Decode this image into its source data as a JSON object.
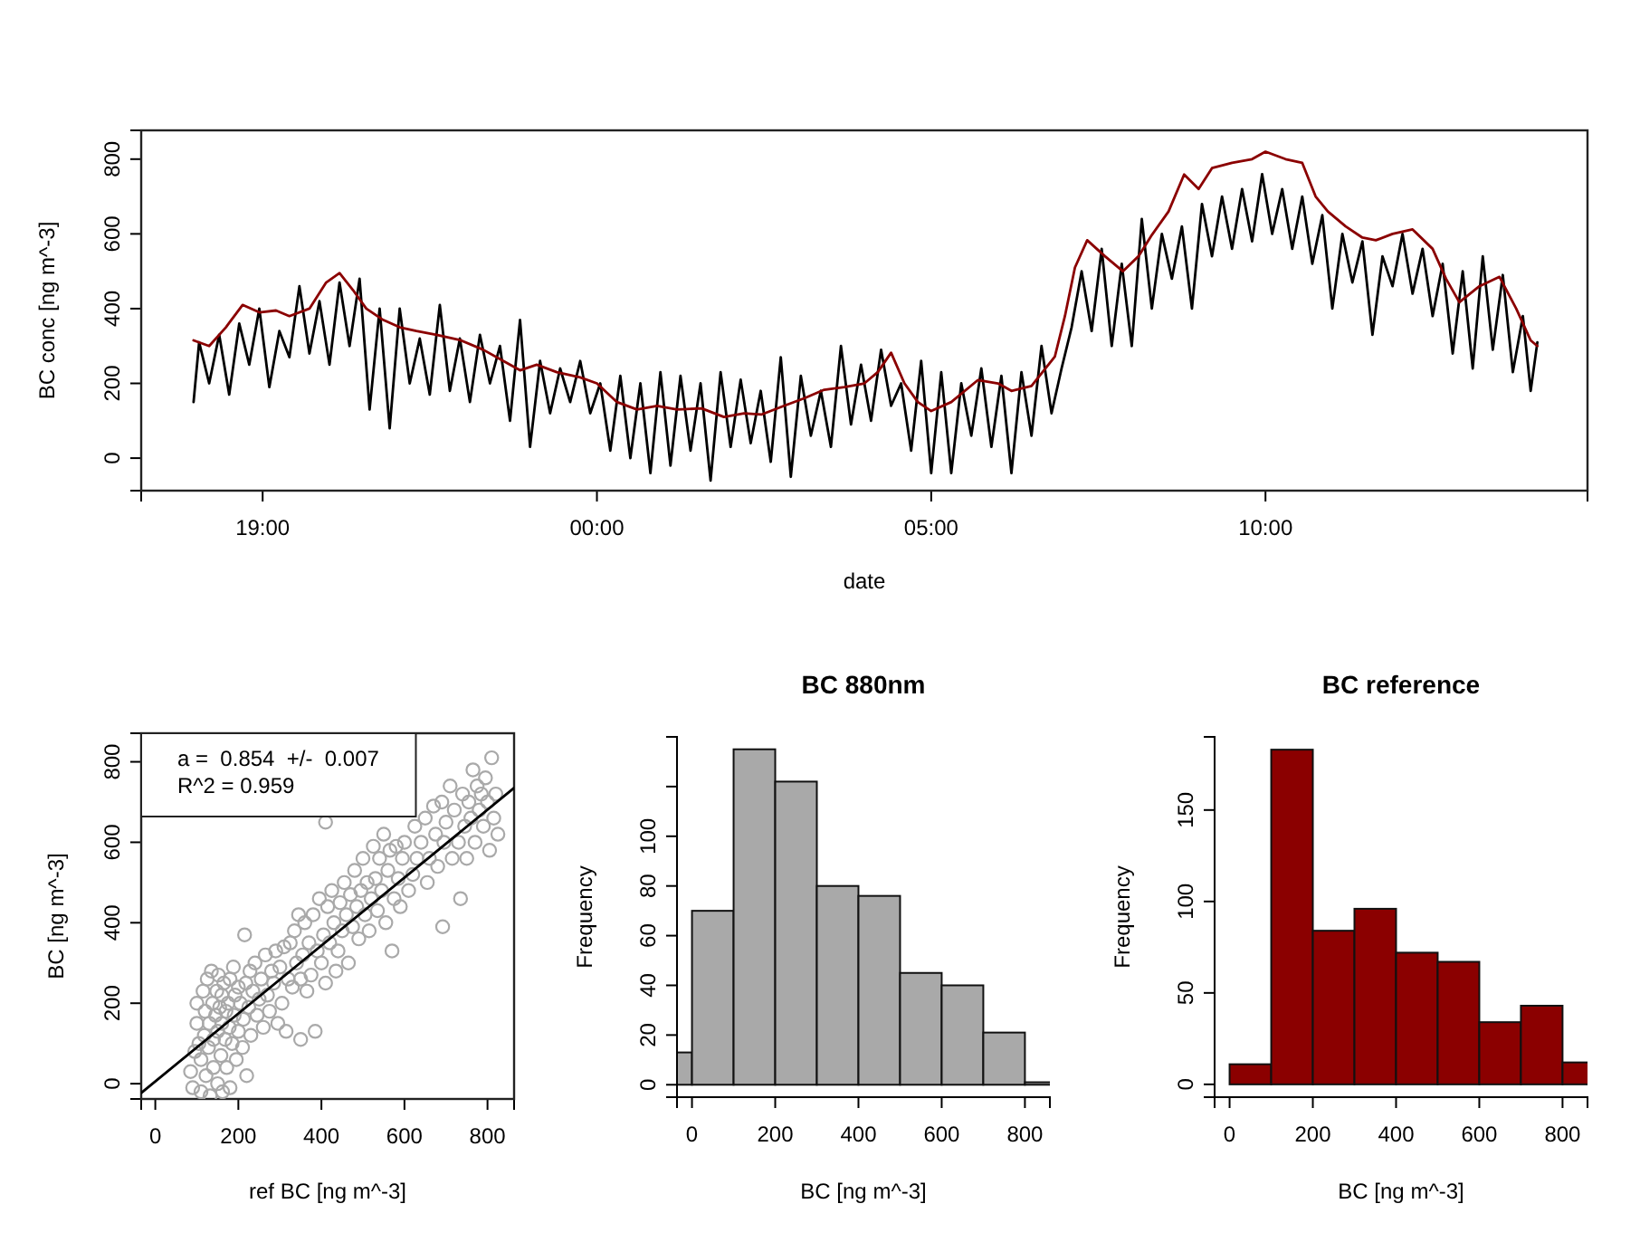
{
  "chart_data": [
    {
      "type": "line",
      "xlabel": "date",
      "ylabel": "BC conc [ng m^-3]",
      "xlim": [
        "2000-01-01T17:11",
        "2000-01-02T14:49"
      ],
      "ylim": [
        -87,
        877
      ],
      "xticks": [
        {
          "value": "2000-01-01T19:00",
          "label": "19:00"
        },
        {
          "value": "2000-01-02T00:00",
          "label": "00:00"
        },
        {
          "value": "2000-01-02T05:00",
          "label": "05:00"
        },
        {
          "value": "2000-01-02T10:00",
          "label": "10:00"
        }
      ],
      "yticks": [
        0,
        200,
        400,
        600,
        800
      ],
      "series": [
        {
          "color": "#000000",
          "x": [
            "2000-01-01T17:58",
            "2000-01-01T18:03",
            "2000-01-01T18:12",
            "2000-01-01T18:21",
            "2000-01-01T18:30",
            "2000-01-01T18:39",
            "2000-01-01T18:48",
            "2000-01-01T18:57",
            "2000-01-01T19:06",
            "2000-01-01T19:15",
            "2000-01-01T19:24",
            "2000-01-01T19:33",
            "2000-01-01T19:42",
            "2000-01-01T19:51",
            "2000-01-01T20:00",
            "2000-01-01T20:09",
            "2000-01-01T20:18",
            "2000-01-01T20:27",
            "2000-01-01T20:36",
            "2000-01-01T20:45",
            "2000-01-01T20:54",
            "2000-01-01T21:03",
            "2000-01-01T21:12",
            "2000-01-01T21:21",
            "2000-01-01T21:30",
            "2000-01-01T21:39",
            "2000-01-01T21:48",
            "2000-01-01T21:57",
            "2000-01-01T22:06",
            "2000-01-01T22:15",
            "2000-01-01T22:24",
            "2000-01-01T22:33",
            "2000-01-01T22:42",
            "2000-01-01T22:51",
            "2000-01-01T23:00",
            "2000-01-01T23:09",
            "2000-01-01T23:18",
            "2000-01-01T23:27",
            "2000-01-01T23:36",
            "2000-01-01T23:45",
            "2000-01-01T23:54",
            "2000-01-02T00:03",
            "2000-01-02T00:12",
            "2000-01-02T00:21",
            "2000-01-02T00:30",
            "2000-01-02T00:39",
            "2000-01-02T00:48",
            "2000-01-02T00:57",
            "2000-01-02T01:06",
            "2000-01-02T01:15",
            "2000-01-02T01:24",
            "2000-01-02T01:33",
            "2000-01-02T01:42",
            "2000-01-02T01:51",
            "2000-01-02T02:00",
            "2000-01-02T02:09",
            "2000-01-02T02:18",
            "2000-01-02T02:27",
            "2000-01-02T02:36",
            "2000-01-02T02:45",
            "2000-01-02T02:54",
            "2000-01-02T03:03",
            "2000-01-02T03:12",
            "2000-01-02T03:21",
            "2000-01-02T03:30",
            "2000-01-02T03:39",
            "2000-01-02T03:48",
            "2000-01-02T03:57",
            "2000-01-02T04:06",
            "2000-01-02T04:15",
            "2000-01-02T04:24",
            "2000-01-02T04:33",
            "2000-01-02T04:42",
            "2000-01-02T04:51",
            "2000-01-02T05:00",
            "2000-01-02T05:09",
            "2000-01-02T05:18",
            "2000-01-02T05:27",
            "2000-01-02T05:36",
            "2000-01-02T05:45",
            "2000-01-02T05:54",
            "2000-01-02T06:03",
            "2000-01-02T06:12",
            "2000-01-02T06:21",
            "2000-01-02T06:30",
            "2000-01-02T06:39",
            "2000-01-02T06:48",
            "2000-01-02T06:57",
            "2000-01-02T07:06",
            "2000-01-02T07:15",
            "2000-01-02T07:24",
            "2000-01-02T07:33",
            "2000-01-02T07:42",
            "2000-01-02T07:51",
            "2000-01-02T08:00",
            "2000-01-02T08:09",
            "2000-01-02T08:18",
            "2000-01-02T08:27",
            "2000-01-02T08:36",
            "2000-01-02T08:45",
            "2000-01-02T08:54",
            "2000-01-02T09:03",
            "2000-01-02T09:12",
            "2000-01-02T09:21",
            "2000-01-02T09:30",
            "2000-01-02T09:39",
            "2000-01-02T09:48",
            "2000-01-02T09:57",
            "2000-01-02T10:06",
            "2000-01-02T10:15",
            "2000-01-02T10:24",
            "2000-01-02T10:33",
            "2000-01-02T10:42",
            "2000-01-02T10:51",
            "2000-01-02T11:00",
            "2000-01-02T11:09",
            "2000-01-02T11:18",
            "2000-01-02T11:27",
            "2000-01-02T11:36",
            "2000-01-02T11:45",
            "2000-01-02T11:54",
            "2000-01-02T12:03",
            "2000-01-02T12:12",
            "2000-01-02T12:21",
            "2000-01-02T12:30",
            "2000-01-02T12:39",
            "2000-01-02T12:48",
            "2000-01-02T12:57",
            "2000-01-02T13:06",
            "2000-01-02T13:15",
            "2000-01-02T13:24",
            "2000-01-02T13:33",
            "2000-01-02T13:42",
            "2000-01-02T13:51",
            "2000-01-02T13:58",
            "2000-01-02T14:04"
          ],
          "values": [
            150,
            310,
            200,
            330,
            170,
            360,
            250,
            400,
            190,
            340,
            270,
            460,
            280,
            420,
            250,
            470,
            300,
            480,
            130,
            400,
            80,
            400,
            200,
            320,
            170,
            410,
            180,
            320,
            150,
            330,
            200,
            300,
            100,
            370,
            30,
            260,
            120,
            240,
            150,
            260,
            120,
            200,
            20,
            220,
            0,
            200,
            -40,
            230,
            -20,
            220,
            20,
            200,
            -60,
            230,
            30,
            210,
            40,
            180,
            -10,
            270,
            -50,
            220,
            60,
            180,
            30,
            300,
            90,
            250,
            100,
            290,
            140,
            200,
            20,
            260,
            -40,
            230,
            -40,
            200,
            60,
            240,
            30,
            220,
            -40,
            230,
            60,
            300,
            120,
            240,
            350,
            500,
            340,
            560,
            300,
            520,
            300,
            640,
            400,
            600,
            480,
            620,
            400,
            680,
            540,
            700,
            560,
            720,
            580,
            760,
            600,
            720,
            560,
            700,
            520,
            650,
            400,
            600,
            470,
            580,
            330,
            540,
            460,
            600,
            440,
            560,
            380,
            520,
            280,
            500,
            240,
            540,
            290,
            490,
            230,
            380,
            180,
            310
          ]
        },
        {
          "color": "#8b0000",
          "x": [
            "2000-01-01T17:58",
            "2000-01-01T18:12",
            "2000-01-01T18:27",
            "2000-01-01T18:42",
            "2000-01-01T18:57",
            "2000-01-01T19:12",
            "2000-01-01T19:24",
            "2000-01-01T19:42",
            "2000-01-01T19:57",
            "2000-01-01T20:09",
            "2000-01-01T20:21",
            "2000-01-01T20:33",
            "2000-01-01T20:48",
            "2000-01-01T21:03",
            "2000-01-01T21:18",
            "2000-01-01T21:36",
            "2000-01-01T21:57",
            "2000-01-01T22:18",
            "2000-01-01T22:36",
            "2000-01-01T22:51",
            "2000-01-01T23:06",
            "2000-01-01T23:24",
            "2000-01-01T23:45",
            "2000-01-02T00:00",
            "2000-01-02T00:18",
            "2000-01-02T00:36",
            "2000-01-02T00:54",
            "2000-01-02T01:12",
            "2000-01-02T01:34",
            "2000-01-02T01:54",
            "2000-01-02T02:12",
            "2000-01-02T02:28",
            "2000-01-02T02:48",
            "2000-01-02T03:06",
            "2000-01-02T03:24",
            "2000-01-02T03:42",
            "2000-01-02T04:00",
            "2000-01-02T04:12",
            "2000-01-02T04:24",
            "2000-01-02T04:36",
            "2000-01-02T04:48",
            "2000-01-02T05:00",
            "2000-01-02T05:18",
            "2000-01-02T05:42",
            "2000-01-02T06:00",
            "2000-01-02T06:12",
            "2000-01-02T06:30",
            "2000-01-02T06:51",
            "2000-01-02T07:00",
            "2000-01-02T07:09",
            "2000-01-02T07:20",
            "2000-01-02T07:36",
            "2000-01-02T07:52",
            "2000-01-02T08:06",
            "2000-01-02T08:18",
            "2000-01-02T08:33",
            "2000-01-02T08:47",
            "2000-01-02T09:00",
            "2000-01-02T09:12",
            "2000-01-02T09:30",
            "2000-01-02T09:48",
            "2000-01-02T10:00",
            "2000-01-02T10:18",
            "2000-01-02T10:33",
            "2000-01-02T10:45",
            "2000-01-02T10:56",
            "2000-01-02T11:12",
            "2000-01-02T11:27",
            "2000-01-02T11:39",
            "2000-01-02T11:54",
            "2000-01-02T12:12",
            "2000-01-02T12:30",
            "2000-01-02T12:42",
            "2000-01-02T12:54",
            "2000-01-02T13:12",
            "2000-01-02T13:30",
            "2000-01-02T13:45",
            "2000-01-02T13:58",
            "2000-01-02T14:04"
          ],
          "values": [
            315,
            300,
            350,
            410,
            390,
            395,
            380,
            400,
            470,
            495,
            450,
            400,
            370,
            350,
            340,
            330,
            316,
            290,
            260,
            235,
            250,
            230,
            216,
            200,
            150,
            130,
            140,
            130,
            133,
            110,
            120,
            117,
            140,
            160,
            183,
            190,
            200,
            230,
            282,
            200,
            150,
            126,
            150,
            209,
            200,
            180,
            193,
            272,
            380,
            510,
            583,
            540,
            500,
            540,
            597,
            660,
            759,
            720,
            776,
            790,
            800,
            820,
            800,
            790,
            700,
            660,
            620,
            590,
            583,
            600,
            612,
            560,
            480,
            417,
            460,
            485,
            400,
            315,
            300
          ]
        }
      ]
    },
    {
      "type": "scatter",
      "xlabel": "ref BC [ng m^-3]",
      "ylabel": "BC [ng m^-3]",
      "xlim": [
        -34,
        864
      ],
      "ylim": [
        -38,
        871
      ],
      "xticks": [
        0,
        200,
        400,
        600,
        800
      ],
      "yticks": [
        0,
        200,
        400,
        600,
        800
      ],
      "annotations": [
        "a =  0.854  +/-  0.007",
        "R^2 = 0.959"
      ],
      "series": [
        {
          "type": "scatter",
          "marker": "circle",
          "color": "#a9a9a9",
          "x": [
            85,
            90,
            95,
            100,
            100,
            105,
            110,
            110,
            115,
            118,
            120,
            122,
            125,
            128,
            130,
            132,
            135,
            138,
            140,
            140,
            145,
            148,
            150,
            150,
            152,
            155,
            158,
            160,
            160,
            162,
            165,
            168,
            170,
            172,
            175,
            178,
            180,
            180,
            185,
            188,
            190,
            192,
            195,
            200,
            200,
            205,
            210,
            212,
            215,
            218,
            220,
            225,
            228,
            230,
            235,
            240,
            245,
            250,
            255,
            260,
            265,
            270,
            275,
            280,
            285,
            290,
            295,
            300,
            305,
            310,
            315,
            320,
            325,
            330,
            335,
            340,
            345,
            350,
            350,
            355,
            360,
            365,
            370,
            375,
            380,
            385,
            390,
            395,
            400,
            405,
            410,
            410,
            415,
            420,
            425,
            430,
            435,
            440,
            445,
            450,
            455,
            460,
            465,
            470,
            475,
            480,
            485,
            490,
            495,
            500,
            505,
            510,
            515,
            520,
            525,
            530,
            535,
            540,
            545,
            550,
            555,
            560,
            565,
            570,
            575,
            580,
            585,
            590,
            595,
            600,
            610,
            620,
            625,
            630,
            640,
            650,
            655,
            660,
            670,
            675,
            680,
            690,
            692,
            695,
            700,
            710,
            715,
            720,
            730,
            735,
            740,
            745,
            750,
            755,
            760,
            765,
            770,
            775,
            780,
            785,
            790,
            795,
            800,
            805,
            810,
            815,
            820,
            825
          ],
          "values": [
            30,
            -10,
            80,
            150,
            200,
            100,
            60,
            -20,
            230,
            120,
            180,
            20,
            260,
            90,
            150,
            -30,
            280,
            200,
            110,
            40,
            170,
            230,
            0,
            130,
            270,
            190,
            70,
            150,
            220,
            -20,
            250,
            110,
            180,
            40,
            200,
            140,
            260,
            -10,
            100,
            290,
            170,
            220,
            60,
            130,
            240,
            200,
            90,
            160,
            370,
            250,
            20,
            190,
            280,
            120,
            230,
            300,
            170,
            210,
            260,
            140,
            320,
            220,
            180,
            280,
            250,
            330,
            150,
            290,
            200,
            340,
            130,
            260,
            350,
            240,
            380,
            300,
            420,
            110,
            260,
            320,
            400,
            230,
            350,
            270,
            420,
            130,
            330,
            460,
            300,
            370,
            650,
            250,
            440,
            350,
            480,
            400,
            280,
            330,
            450,
            380,
            500,
            420,
            300,
            470,
            390,
            530,
            440,
            360,
            480,
            560,
            420,
            500,
            380,
            460,
            590,
            510,
            430,
            560,
            480,
            620,
            400,
            530,
            580,
            330,
            460,
            590,
            510,
            440,
            560,
            600,
            480,
            520,
            640,
            560,
            600,
            660,
            500,
            560,
            690,
            620,
            540,
            700,
            390,
            600,
            650,
            740,
            560,
            680,
            600,
            460,
            720,
            640,
            560,
            700,
            660,
            780,
            600,
            740,
            680,
            720,
            640,
            760,
            700,
            580,
            810,
            660,
            720,
            620
          ]
        },
        {
          "type": "line",
          "color": "#000000",
          "x": [
            -34,
            864
          ],
          "values": [
            -23,
            735
          ]
        }
      ]
    },
    {
      "type": "histogram",
      "title": "BC 880nm",
      "xlabel": "BC [ng m^-3]",
      "ylabel": "Frequency",
      "color": "#a9a9a9",
      "bins": [
        -100,
        0,
        100,
        200,
        300,
        400,
        500,
        600,
        700,
        800,
        900
      ],
      "values": [
        13,
        70,
        135,
        122,
        80,
        76,
        45,
        40,
        21,
        1
      ],
      "xlim": [
        -36,
        860
      ],
      "ylim": [
        -5,
        140
      ],
      "xticks": [
        0,
        200,
        400,
        600,
        800
      ],
      "yticks": [
        0,
        20,
        40,
        60,
        80,
        100,
        {
          "value": 120,
          "label": null
        }
      ]
    },
    {
      "type": "histogram",
      "title": "BC reference",
      "xlabel": "BC [ng m^-3]",
      "ylabel": "Frequency",
      "color": "#8b0000",
      "bins": [
        0,
        100,
        200,
        300,
        400,
        500,
        600,
        700,
        800,
        900
      ],
      "values": [
        11,
        183,
        84,
        96,
        72,
        67,
        34,
        43,
        12
      ],
      "xlim": [
        -36,
        860
      ],
      "ylim": [
        -7,
        190
      ],
      "xticks": [
        0,
        200,
        400,
        600,
        800
      ],
      "yticks": [
        0,
        50,
        100,
        150
      ]
    }
  ]
}
